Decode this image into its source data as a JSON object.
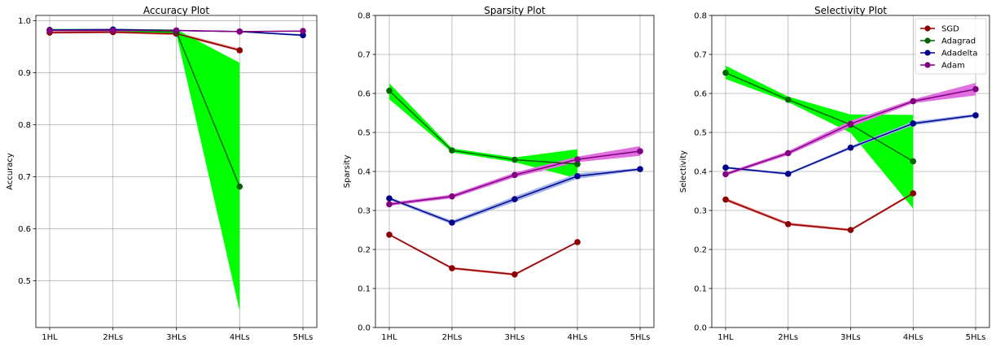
{
  "chart_data": [
    {
      "type": "line",
      "title": "Accuracy Plot",
      "xlabel": "",
      "ylabel": "Accuracy",
      "categories": [
        "1HL",
        "2HLs",
        "3HLs",
        "4HLs",
        "5HLs"
      ],
      "ylim": [
        0.41,
        1.01
      ],
      "yticks": [
        0.5,
        0.6,
        0.7,
        0.8,
        0.9,
        1.0
      ],
      "ytick_labels": [
        "0.5",
        "0.6",
        "0.7",
        "0.8",
        "0.9",
        "1.0"
      ],
      "grid": true,
      "series": [
        {
          "name": "SGD",
          "color": "#8b0000",
          "band_color": "#f08080",
          "values": [
            0.977,
            0.978,
            0.975,
            0.943,
            null
          ],
          "lower": [
            0.975,
            0.976,
            0.972,
            0.941,
            null
          ],
          "upper": [
            0.979,
            0.98,
            0.978,
            0.946,
            null
          ]
        },
        {
          "name": "Adagrad",
          "color": "#006400",
          "band_color": "#00ff00",
          "values": [
            0.982,
            0.982,
            0.979,
            0.681,
            null
          ],
          "lower": [
            0.98,
            0.98,
            0.975,
            0.442,
            null
          ],
          "upper": [
            0.984,
            0.984,
            0.983,
            0.919,
            null
          ]
        },
        {
          "name": "Adadelta",
          "color": "#00008b",
          "band_color": "#a0b4e8",
          "values": [
            0.982,
            0.983,
            0.981,
            0.979,
            0.972
          ],
          "lower": [
            0.981,
            0.982,
            0.98,
            0.978,
            0.97
          ],
          "upper": [
            0.983,
            0.984,
            0.982,
            0.98,
            0.974
          ]
        },
        {
          "name": "Adam",
          "color": "#800080",
          "band_color": "#e070e0",
          "values": [
            0.981,
            0.981,
            0.981,
            0.979,
            0.98
          ],
          "lower": [
            0.98,
            0.98,
            0.98,
            0.978,
            0.979
          ],
          "upper": [
            0.982,
            0.982,
            0.982,
            0.98,
            0.981
          ]
        }
      ]
    },
    {
      "type": "line",
      "title": "Sparsity Plot",
      "xlabel": "",
      "ylabel": "Sparsity",
      "categories": [
        "1HL",
        "2HLs",
        "3HLs",
        "4HLs",
        "5HLs"
      ],
      "ylim": [
        0.0,
        0.8
      ],
      "yticks": [
        0.0,
        0.1,
        0.2,
        0.3,
        0.4,
        0.5,
        0.6,
        0.7,
        0.8
      ],
      "ytick_labels": [
        "0.0",
        "0.1",
        "0.2",
        "0.3",
        "0.4",
        "0.5",
        "0.6",
        "0.7",
        "0.8"
      ],
      "grid": true,
      "series": [
        {
          "name": "SGD",
          "color": "#8b0000",
          "band_color": "#f08080",
          "values": [
            0.238,
            0.152,
            0.136,
            0.219,
            null
          ],
          "lower": [
            0.236,
            0.149,
            0.133,
            0.217,
            null
          ],
          "upper": [
            0.241,
            0.155,
            0.139,
            0.222,
            null
          ]
        },
        {
          "name": "Adagrad",
          "color": "#006400",
          "band_color": "#00ff00",
          "values": [
            0.607,
            0.454,
            0.43,
            0.419,
            null
          ],
          "lower": [
            0.585,
            0.449,
            0.424,
            0.382,
            null
          ],
          "upper": [
            0.626,
            0.459,
            0.436,
            0.457,
            null
          ]
        },
        {
          "name": "Adadelta",
          "color": "#00008b",
          "band_color": "#a0b4e8",
          "values": [
            0.331,
            0.269,
            0.329,
            0.388,
            0.406
          ],
          "lower": [
            0.327,
            0.264,
            0.322,
            0.381,
            0.403
          ],
          "upper": [
            0.335,
            0.274,
            0.336,
            0.395,
            0.409
          ]
        },
        {
          "name": "Adam",
          "color": "#800080",
          "band_color": "#e070e0",
          "values": [
            0.316,
            0.336,
            0.391,
            0.431,
            0.452
          ],
          "lower": [
            0.312,
            0.331,
            0.385,
            0.424,
            0.44
          ],
          "upper": [
            0.32,
            0.341,
            0.397,
            0.438,
            0.465
          ]
        }
      ]
    },
    {
      "type": "line",
      "title": "Selectivity Plot",
      "xlabel": "",
      "ylabel": "Selectivity",
      "categories": [
        "1HL",
        "2HLs",
        "3HLs",
        "4HLs",
        "5HLs"
      ],
      "ylim": [
        0.0,
        0.8
      ],
      "yticks": [
        0.0,
        0.1,
        0.2,
        0.3,
        0.4,
        0.5,
        0.6,
        0.7,
        0.8
      ],
      "ytick_labels": [
        "0.0",
        "0.1",
        "0.2",
        "0.3",
        "0.4",
        "0.5",
        "0.6",
        "0.7",
        "0.8"
      ],
      "grid": true,
      "legend": {
        "position": "upper right",
        "entries": [
          "SGD",
          "Adagrad",
          "Adadelta",
          "Adam"
        ]
      },
      "series": [
        {
          "name": "SGD",
          "color": "#8b0000",
          "band_color": "#f08080",
          "values": [
            0.328,
            0.265,
            0.25,
            0.344,
            null
          ],
          "lower": [
            0.324,
            0.262,
            0.247,
            0.341,
            null
          ],
          "upper": [
            0.332,
            0.269,
            0.253,
            0.347,
            null
          ]
        },
        {
          "name": "Adagrad",
          "color": "#006400",
          "band_color": "#00ff00",
          "values": [
            0.653,
            0.584,
            0.52,
            0.426,
            null
          ],
          "lower": [
            0.637,
            0.578,
            0.499,
            0.305,
            null
          ],
          "upper": [
            0.671,
            0.592,
            0.546,
            0.545,
            null
          ]
        },
        {
          "name": "Adadelta",
          "color": "#00008b",
          "band_color": "#a0b4e8",
          "values": [
            0.41,
            0.394,
            0.461,
            0.523,
            0.544
          ],
          "lower": [
            0.407,
            0.391,
            0.457,
            0.518,
            0.54
          ],
          "upper": [
            0.413,
            0.397,
            0.465,
            0.528,
            0.548
          ]
        },
        {
          "name": "Adam",
          "color": "#800080",
          "band_color": "#e070e0",
          "values": [
            0.393,
            0.447,
            0.522,
            0.58,
            0.611
          ],
          "lower": [
            0.389,
            0.442,
            0.514,
            0.575,
            0.595
          ],
          "upper": [
            0.397,
            0.452,
            0.53,
            0.585,
            0.627
          ]
        }
      ]
    }
  ]
}
